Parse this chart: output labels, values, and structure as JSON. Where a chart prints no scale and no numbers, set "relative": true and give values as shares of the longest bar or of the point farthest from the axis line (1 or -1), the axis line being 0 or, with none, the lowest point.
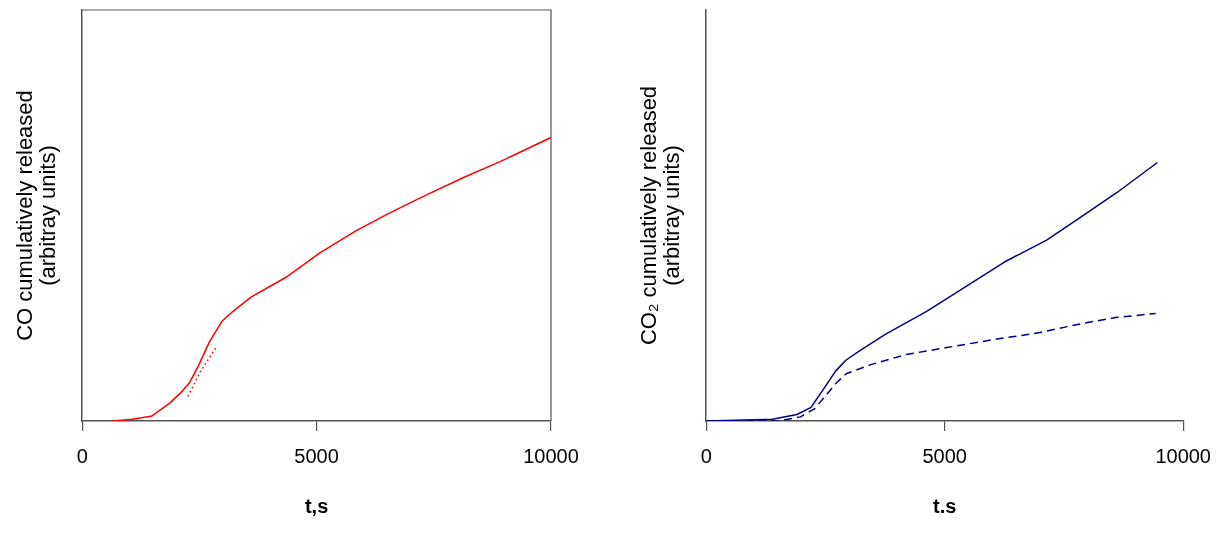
{
  "chart_data": [
    {
      "type": "line",
      "relative": true,
      "xlabel": "t,s",
      "ylabel": "CO cumulatively released\n(arbitray units)",
      "xlim": [
        0,
        10000
      ],
      "xticks": [
        0,
        5000,
        10000
      ],
      "grid": false,
      "legend": false,
      "marker": "none",
      "series": [
        {
          "color": "#ff0000",
          "line_style": "solid",
          "x": [
            645,
            1067,
            1490,
            1874,
            2104,
            2297,
            2488,
            2719,
            2988,
            3218,
            3602,
            4370,
            5061,
            5829,
            6521,
            7212,
            8134,
            8902,
            10000
          ],
          "values": [
            0,
            0.006,
            0.018,
            0.064,
            0.1,
            0.137,
            0.198,
            0.281,
            0.353,
            0.387,
            0.437,
            0.509,
            0.592,
            0.67,
            0.731,
            0.787,
            0.859,
            0.914,
            1
          ]
        },
        {
          "color": "#ff0000",
          "line_style": "dotted",
          "x": [
            2258,
            2527,
            2873
          ],
          "values": [
            0.087,
            0.176,
            0.264
          ]
        }
      ]
    },
    {
      "type": "line",
      "relative": true,
      "xlabel": "t.s",
      "ylabel": "CO₂ cumulatively released\n(arbitray units)",
      "xlim": [
        0,
        10000
      ],
      "xticks": [
        0,
        5000,
        10000
      ],
      "grid": false,
      "legend": false,
      "marker": "none",
      "series": [
        {
          "color": "#000080",
          "line_style": "solid",
          "x": [
            0,
            1385,
            1902,
            2197,
            2491,
            2712,
            2934,
            3230,
            3745,
            4630,
            5367,
            6252,
            7137,
            7876,
            8613,
            9460
          ],
          "values": [
            0,
            0.007,
            0.025,
            0.053,
            0.132,
            0.193,
            0.236,
            0.273,
            0.334,
            0.425,
            0.511,
            0.615,
            0.7,
            0.792,
            0.884,
            1
          ]
        },
        {
          "color": "#000080",
          "line_style": "dashed",
          "x": [
            0,
            1512,
            1976,
            2270,
            2491,
            2712,
            2934,
            3451,
            4188,
            5073,
            6031,
            6991,
            7876,
            8613,
            9425
          ],
          "values": [
            0,
            0,
            0.016,
            0.047,
            0.095,
            0.144,
            0.183,
            0.218,
            0.257,
            0.285,
            0.315,
            0.342,
            0.377,
            0.401,
            0.416
          ]
        }
      ]
    }
  ]
}
